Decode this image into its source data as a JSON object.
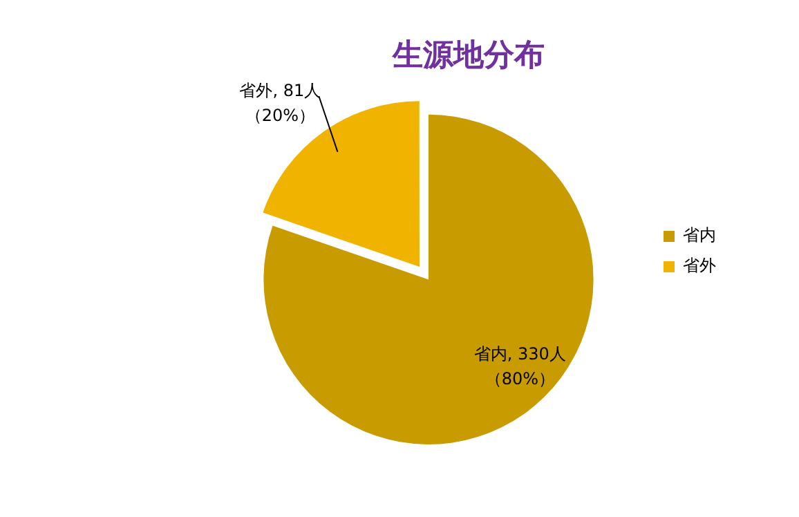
{
  "chart_data": {
    "type": "pie",
    "title": "生源地分布",
    "categories": [
      "省内",
      "省外"
    ],
    "values": [
      330,
      81
    ],
    "colors": [
      "#c89b00",
      "#f0b400"
    ],
    "value_labels": [
      "省内, 330人（80%）",
      "省外, 81人（20%）"
    ],
    "legend": "right"
  }
}
